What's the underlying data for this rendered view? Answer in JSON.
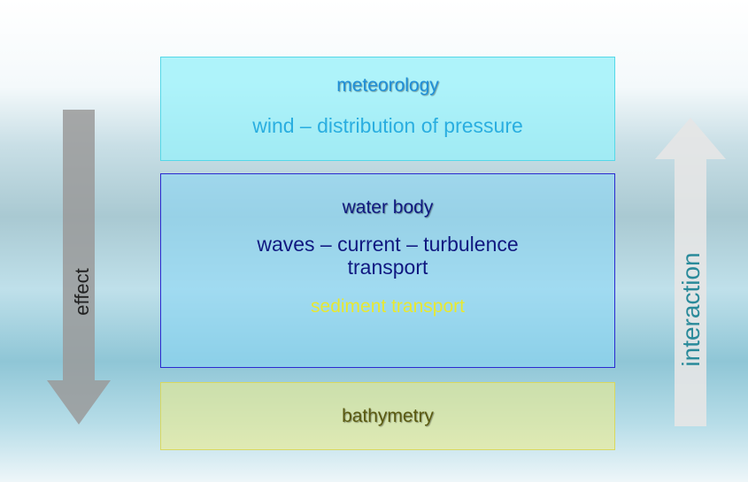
{
  "boxes": [
    {
      "title": "meteorology",
      "lines": [
        "wind – distribution of pressure"
      ]
    },
    {
      "title": "water body",
      "lines": [
        "waves – current – turbulence",
        "transport",
        "sediment transport"
      ]
    },
    {
      "title": "bathymetry",
      "lines": []
    }
  ],
  "arrows": {
    "left": "effect",
    "right": "interaction"
  }
}
